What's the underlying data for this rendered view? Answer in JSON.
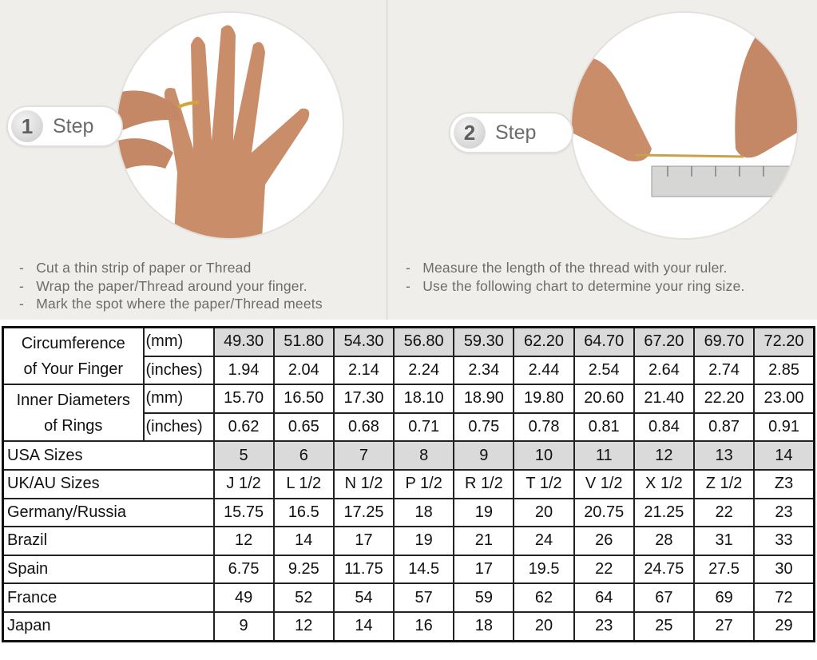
{
  "step1": {
    "number": "1",
    "label": "Step",
    "instructions": [
      "Cut a thin strip of paper or Thread",
      "Wrap the paper/Thread around your finger.",
      "Mark the spot where the paper/Thread meets"
    ]
  },
  "step2": {
    "number": "2",
    "label": "Step",
    "instructions": [
      "Measure the length of the thread with your ruler.",
      "Use the following chart to determine your ring size."
    ]
  },
  "chart": {
    "circumference_label_1": "Circumference",
    "circumference_label_2": "of Your Finger",
    "diameter_label_1": "Inner Diameters",
    "diameter_label_2": "of Rings",
    "unit_mm": "(mm)",
    "unit_in": "(inches)",
    "circ_mm": [
      "49.30",
      "51.80",
      "54.30",
      "56.80",
      "59.30",
      "62.20",
      "64.70",
      "67.20",
      "69.70",
      "72.20"
    ],
    "circ_in": [
      "1.94",
      "2.04",
      "2.14",
      "2.24",
      "2.34",
      "2.44",
      "2.54",
      "2.64",
      "2.74",
      "2.85"
    ],
    "diam_mm": [
      "15.70",
      "16.50",
      "17.30",
      "18.10",
      "18.90",
      "19.80",
      "20.60",
      "21.40",
      "22.20",
      "23.00"
    ],
    "diam_in": [
      "0.62",
      "0.65",
      "0.68",
      "0.71",
      "0.75",
      "0.78",
      "0.81",
      "0.84",
      "0.87",
      "0.91"
    ],
    "rows": [
      {
        "label": "USA Sizes",
        "values": [
          "5",
          "6",
          "7",
          "8",
          "9",
          "10",
          "11",
          "12",
          "13",
          "14"
        ]
      },
      {
        "label": "UK/AU Sizes",
        "values": [
          "J 1/2",
          "L 1/2",
          "N 1/2",
          "P 1/2",
          "R 1/2",
          "T 1/2",
          "V 1/2",
          "X 1/2",
          "Z 1/2",
          "Z3"
        ]
      },
      {
        "label": "Germany/Russia",
        "values": [
          "15.75",
          "16.5",
          "17.25",
          "18",
          "19",
          "20",
          "20.75",
          "21.25",
          "22",
          "23"
        ]
      },
      {
        "label": "Brazil",
        "values": [
          "12",
          "14",
          "17",
          "19",
          "21",
          "24",
          "26",
          "28",
          "31",
          "33"
        ]
      },
      {
        "label": "Spain",
        "values": [
          "6.75",
          "9.25",
          "11.75",
          "14.5",
          "17",
          "19.5",
          "22",
          "24.75",
          "27.5",
          "30"
        ]
      },
      {
        "label": "France",
        "values": [
          "49",
          "52",
          "54",
          "57",
          "59",
          "62",
          "64",
          "67",
          "69",
          "72"
        ]
      },
      {
        "label": "Japan",
        "values": [
          "9",
          "12",
          "14",
          "16",
          "18",
          "20",
          "23",
          "25",
          "27",
          "29"
        ]
      }
    ],
    "shade_color": "#dadada"
  }
}
